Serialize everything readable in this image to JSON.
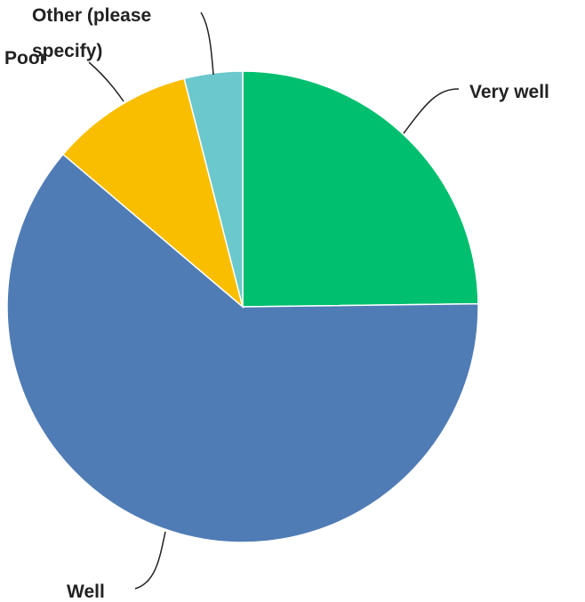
{
  "chart_data": {
    "type": "pie",
    "title": "",
    "slices": [
      {
        "label": "Very well",
        "value": 24.8,
        "color": "#00BF6F"
      },
      {
        "label": "Well",
        "value": 61.4,
        "color": "#507CB6"
      },
      {
        "label": "Poor",
        "value": 9.8,
        "color": "#F9BE00"
      },
      {
        "label": "Other (please specify)",
        "value": 4.0,
        "color": "#6BC8CD"
      }
    ],
    "start_angle_deg": 0,
    "direction": "clockwise"
  }
}
